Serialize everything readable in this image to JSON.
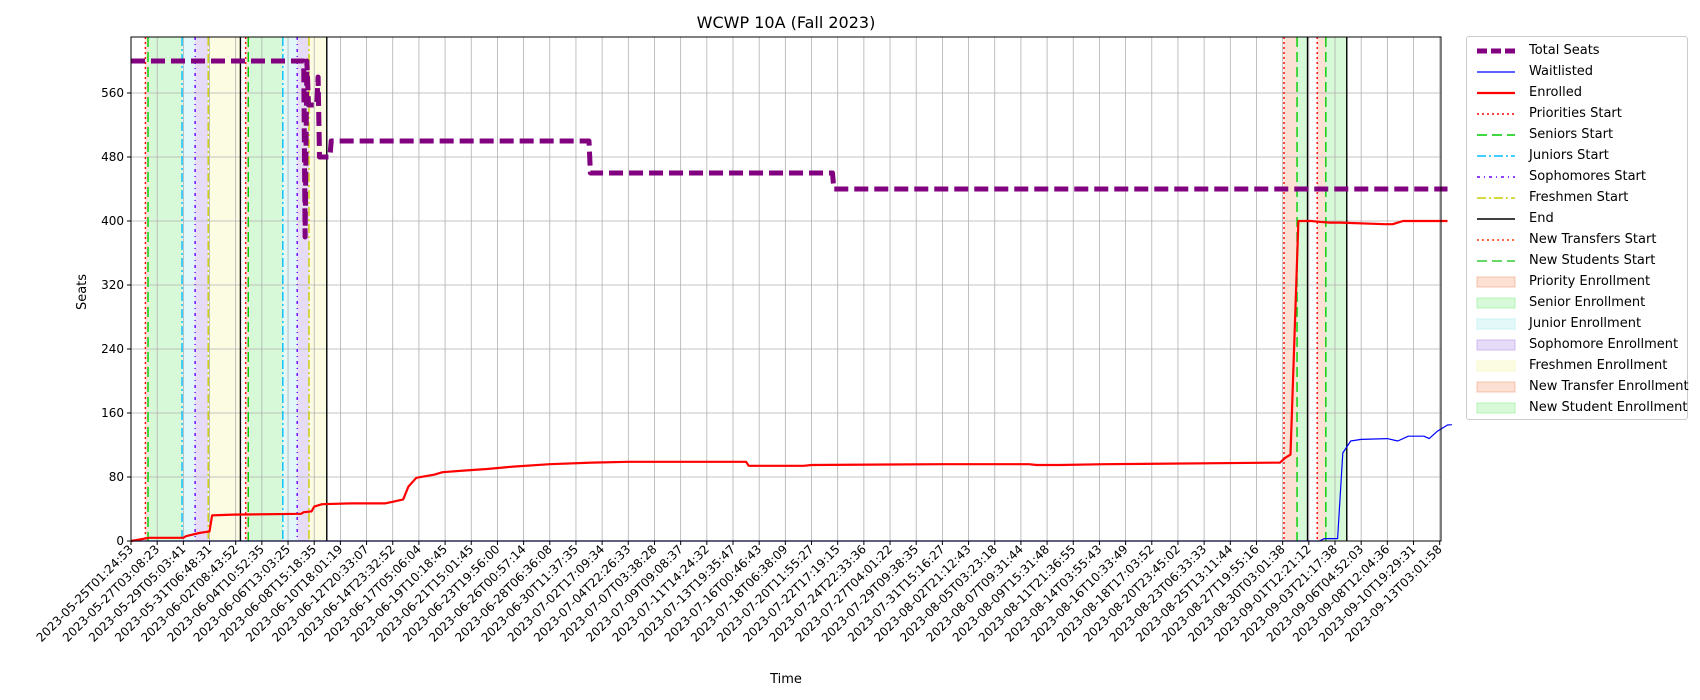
{
  "chart_data": {
    "type": "line",
    "title": "WCWP 10A (Fall 2023)",
    "xlabel": "Time",
    "ylabel": "Seats",
    "ylim": [
      0,
      630
    ],
    "yticks": [
      0,
      80,
      160,
      240,
      320,
      400,
      480,
      560
    ],
    "grid": true,
    "legend_position": "outside-right-top",
    "x_ticks": [
      "2023-05-25T01:24:53",
      "2023-05-27T03:08:23",
      "2023-05-29T05:03:41",
      "2023-05-31T06:48:31",
      "2023-06-02T08:43:52",
      "2023-06-04T10:52:35",
      "2023-06-06T13:03:25",
      "2023-06-08T15:18:35",
      "2023-06-10T18:01:19",
      "2023-06-12T20:33:07",
      "2023-06-14T23:32:52",
      "2023-06-17T05:06:04",
      "2023-06-19T10:18:45",
      "2023-06-21T15:01:45",
      "2023-06-23T19:56:00",
      "2023-06-26T00:57:14",
      "2023-06-28T06:36:08",
      "2023-06-30T11:37:35",
      "2023-07-02T17:09:34",
      "2023-07-04T22:26:33",
      "2023-07-07T03:38:28",
      "2023-07-09T09:08:37",
      "2023-07-11T14:24:32",
      "2023-07-13T19:35:47",
      "2023-07-16T00:46:43",
      "2023-07-18T06:38:09",
      "2023-07-20T11:55:27",
      "2023-07-22T17:19:15",
      "2023-07-24T22:33:36",
      "2023-07-27T04:01:22",
      "2023-07-29T09:38:35",
      "2023-07-31T15:16:27",
      "2023-08-02T21:12:43",
      "2023-08-05T03:23:18",
      "2023-08-07T09:31:44",
      "2023-08-09T15:31:48",
      "2023-08-11T21:36:55",
      "2023-08-14T03:55:43",
      "2023-08-16T10:33:49",
      "2023-08-18T17:03:52",
      "2023-08-20T23:45:02",
      "2023-08-23T06:33:33",
      "2023-08-25T13:11:44",
      "2023-08-27T19:55:16",
      "2023-08-30T03:01:38",
      "2023-09-01T12:21:12",
      "2023-09-03T21:17:38",
      "2023-09-06T04:52:03",
      "2023-09-08T12:04:36",
      "2023-09-10T19:29:31",
      "2023-09-13T03:01:58"
    ],
    "series": [
      {
        "name": "Total Seats",
        "color": "#800080",
        "style": "dashed",
        "points": [
          [
            0,
            600
          ],
          [
            6.6,
            600
          ],
          [
            6.65,
            380
          ],
          [
            6.72,
            600
          ],
          [
            6.78,
            545
          ],
          [
            7.1,
            545
          ],
          [
            7.15,
            580
          ],
          [
            7.2,
            480
          ],
          [
            7.6,
            480
          ],
          [
            7.65,
            500
          ],
          [
            17.5,
            500
          ],
          [
            17.55,
            460
          ],
          [
            26.8,
            460
          ],
          [
            26.85,
            440
          ],
          [
            50.3,
            440
          ]
        ]
      },
      {
        "name": "Waitlisted",
        "color": "#0000ff",
        "style": "solid",
        "points": [
          [
            0,
            0
          ],
          [
            45.4,
            0
          ],
          [
            45.6,
            3
          ],
          [
            46.1,
            3
          ],
          [
            46.3,
            110
          ],
          [
            46.6,
            125
          ],
          [
            47,
            127
          ],
          [
            48,
            128
          ],
          [
            48.4,
            125
          ],
          [
            48.8,
            131
          ],
          [
            49.4,
            131
          ],
          [
            49.6,
            128
          ],
          [
            49.9,
            137
          ],
          [
            50.3,
            145
          ],
          [
            51.6,
            148
          ],
          [
            52,
            146
          ],
          [
            52.3,
            143
          ],
          [
            52.6,
            143
          ],
          [
            53.1,
            139
          ],
          [
            53.5,
            139
          ]
        ]
      },
      {
        "name": "Enrolled",
        "color": "#ff0000",
        "style": "solid",
        "points": [
          [
            0,
            0
          ],
          [
            0.7,
            4
          ],
          [
            2,
            4
          ],
          [
            2.1,
            6
          ],
          [
            2.6,
            10
          ],
          [
            3,
            12
          ],
          [
            3.1,
            32
          ],
          [
            3.9,
            33
          ],
          [
            6.5,
            34
          ],
          [
            6.6,
            36
          ],
          [
            6.9,
            37
          ],
          [
            7.0,
            43
          ],
          [
            7.3,
            46
          ],
          [
            8.4,
            47
          ],
          [
            9.7,
            47
          ],
          [
            10,
            49
          ],
          [
            10.4,
            52
          ],
          [
            10.6,
            68
          ],
          [
            10.9,
            79
          ],
          [
            11.6,
            83
          ],
          [
            11.9,
            86
          ],
          [
            12.7,
            88
          ],
          [
            13.6,
            90
          ],
          [
            14.6,
            93
          ],
          [
            16,
            96
          ],
          [
            17.6,
            98
          ],
          [
            19,
            99
          ],
          [
            23.5,
            99
          ],
          [
            23.6,
            94
          ],
          [
            25.7,
            94
          ],
          [
            26,
            95
          ],
          [
            31,
            96
          ],
          [
            34.3,
            96
          ],
          [
            34.6,
            95
          ],
          [
            35.5,
            95
          ],
          [
            37.2,
            96
          ],
          [
            43.9,
            98
          ],
          [
            44.1,
            104
          ],
          [
            44.3,
            108
          ],
          [
            44.6,
            400
          ],
          [
            45.1,
            400
          ],
          [
            45.4,
            399
          ],
          [
            45.8,
            398
          ],
          [
            46.2,
            398
          ],
          [
            47.9,
            396
          ],
          [
            48.2,
            396
          ],
          [
            48.6,
            400
          ],
          [
            50.3,
            400
          ]
        ]
      }
    ],
    "vlines": [
      {
        "name": "Priorities Start",
        "color": "#ff0000",
        "style": "dotted",
        "x": [
          0.55,
          4.38,
          44.05,
          45.32
        ]
      },
      {
        "name": "Seniors Start",
        "color": "#00cc00",
        "style": "dashed",
        "x": [
          0.65,
          4.48,
          44.55,
          45.65
        ]
      },
      {
        "name": "Juniors Start",
        "color": "#00bfff",
        "style": "dashdot",
        "x": [
          1.95,
          5.8
        ]
      },
      {
        "name": "Sophomores Start",
        "color": "#6a00ff",
        "style": "dashdotted2",
        "x": [
          2.45,
          6.35
        ]
      },
      {
        "name": "Freshmen Start",
        "color": "#cccc00",
        "style": "dashdot",
        "x": [
          2.95,
          6.8
        ]
      },
      {
        "name": "End",
        "color": "#000000",
        "style": "solid",
        "x": [
          4.18,
          7.48,
          44.95,
          46.45
        ]
      },
      {
        "name": "New Transfers Start",
        "color": "#ff3300",
        "style": "dotted",
        "x": []
      },
      {
        "name": "New Students Start",
        "color": "#33cc33",
        "style": "dashed",
        "x": []
      }
    ],
    "spans": [
      {
        "name": "Priority Enrollment",
        "color": "#f4a582",
        "ranges": [
          [
            0.55,
            0.65
          ],
          [
            4.38,
            4.48
          ],
          [
            44.05,
            44.55
          ],
          [
            45.32,
            45.65
          ]
        ]
      },
      {
        "name": "Senior Enrollment",
        "color": "#90ee90",
        "ranges": [
          [
            0.65,
            1.95
          ],
          [
            4.48,
            5.8
          ],
          [
            44.55,
            44.95
          ],
          [
            45.65,
            46.45
          ]
        ]
      },
      {
        "name": "Junior Enrollment",
        "color": "#afeeee",
        "ranges": [
          [
            1.95,
            2.45
          ],
          [
            5.8,
            6.35
          ]
        ]
      },
      {
        "name": "Sophomore Enrollment",
        "color": "#b99ae8",
        "ranges": [
          [
            2.45,
            2.95
          ],
          [
            6.35,
            6.8
          ]
        ]
      },
      {
        "name": "Freshmen Enrollment",
        "color": "#f5f5b0",
        "ranges": [
          [
            2.95,
            4.18
          ],
          [
            6.8,
            7.48
          ]
        ]
      },
      {
        "name": "New Transfer Enrollment",
        "color": "#f4a582",
        "ranges": []
      },
      {
        "name": "New Student Enrollment",
        "color": "#90ee90",
        "ranges": []
      }
    ],
    "legend": [
      "Total Seats",
      "Waitlisted",
      "Enrolled",
      "Priorities Start",
      "Seniors Start",
      "Juniors Start",
      "Sophomores Start",
      "Freshmen Start",
      "End",
      "New Transfers Start",
      "New Students Start",
      "Priority Enrollment",
      "Senior Enrollment",
      "Junior Enrollment",
      "Sophomore Enrollment",
      "Freshmen Enrollment",
      "New Transfer Enrollment",
      "New Student Enrollment"
    ]
  }
}
